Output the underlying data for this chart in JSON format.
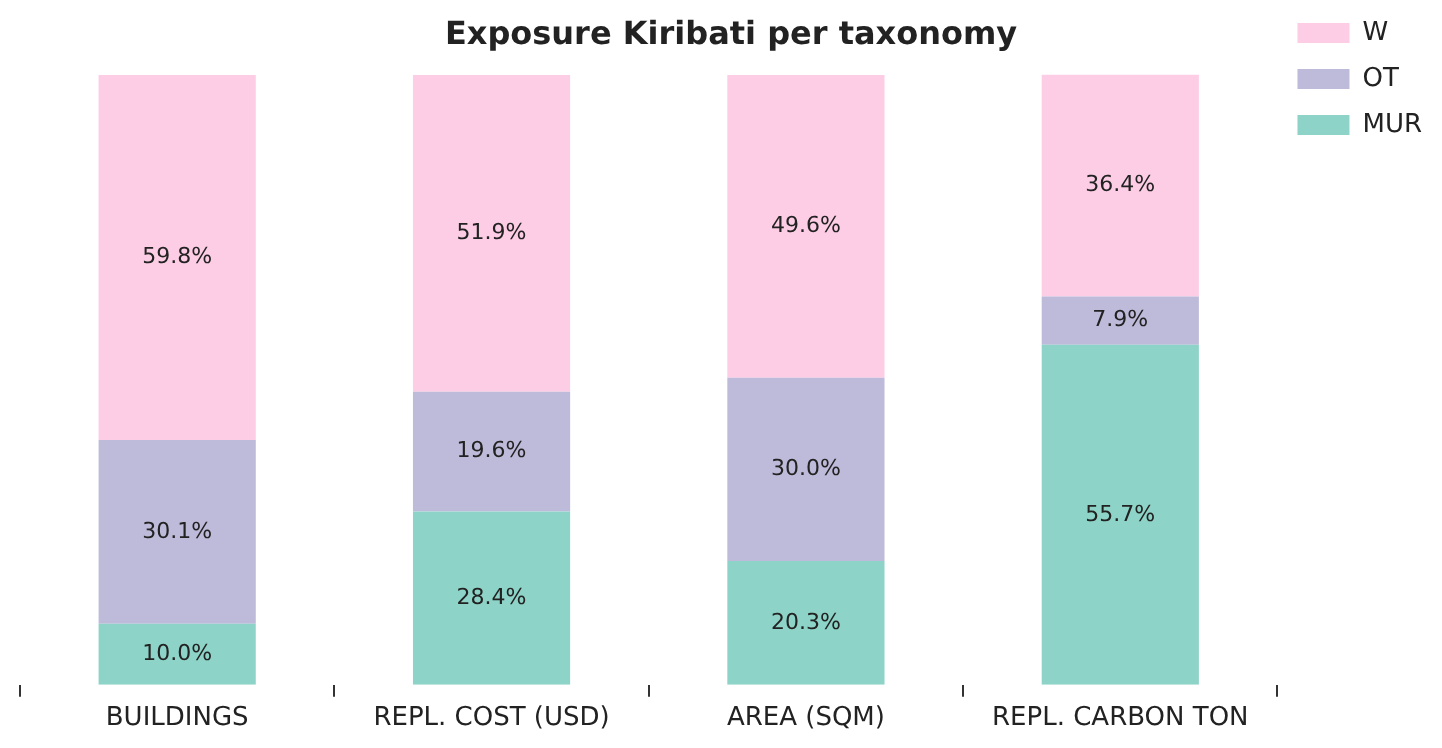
{
  "chart_data": {
    "type": "bar",
    "title": "Exposure Kiribati per taxonomy",
    "stacked": true,
    "legend": "top right",
    "grid": false,
    "categories": [
      "BUILDINGS",
      "REPL. COST (USD)",
      "AREA (SQM)",
      "REPL. CARBON TON"
    ],
    "series": [
      {
        "name": "MUR",
        "color": "#8dd3c7",
        "values": [
          10.0,
          28.4,
          20.3,
          55.7
        ],
        "value_labels": [
          "10.0%",
          "28.4%",
          "20.3%",
          "55.7%"
        ]
      },
      {
        "name": "OT",
        "color": "#bebada",
        "values": [
          30.1,
          19.6,
          30.0,
          7.9
        ],
        "value_labels": [
          "30.1%",
          "19.6%",
          "30.0%",
          "7.9%"
        ]
      },
      {
        "name": "W",
        "color": "#fccde5",
        "values": [
          59.8,
          51.9,
          49.6,
          36.4
        ],
        "value_labels": [
          "59.8%",
          "51.9%",
          "49.6%",
          "36.4%"
        ]
      }
    ]
  }
}
